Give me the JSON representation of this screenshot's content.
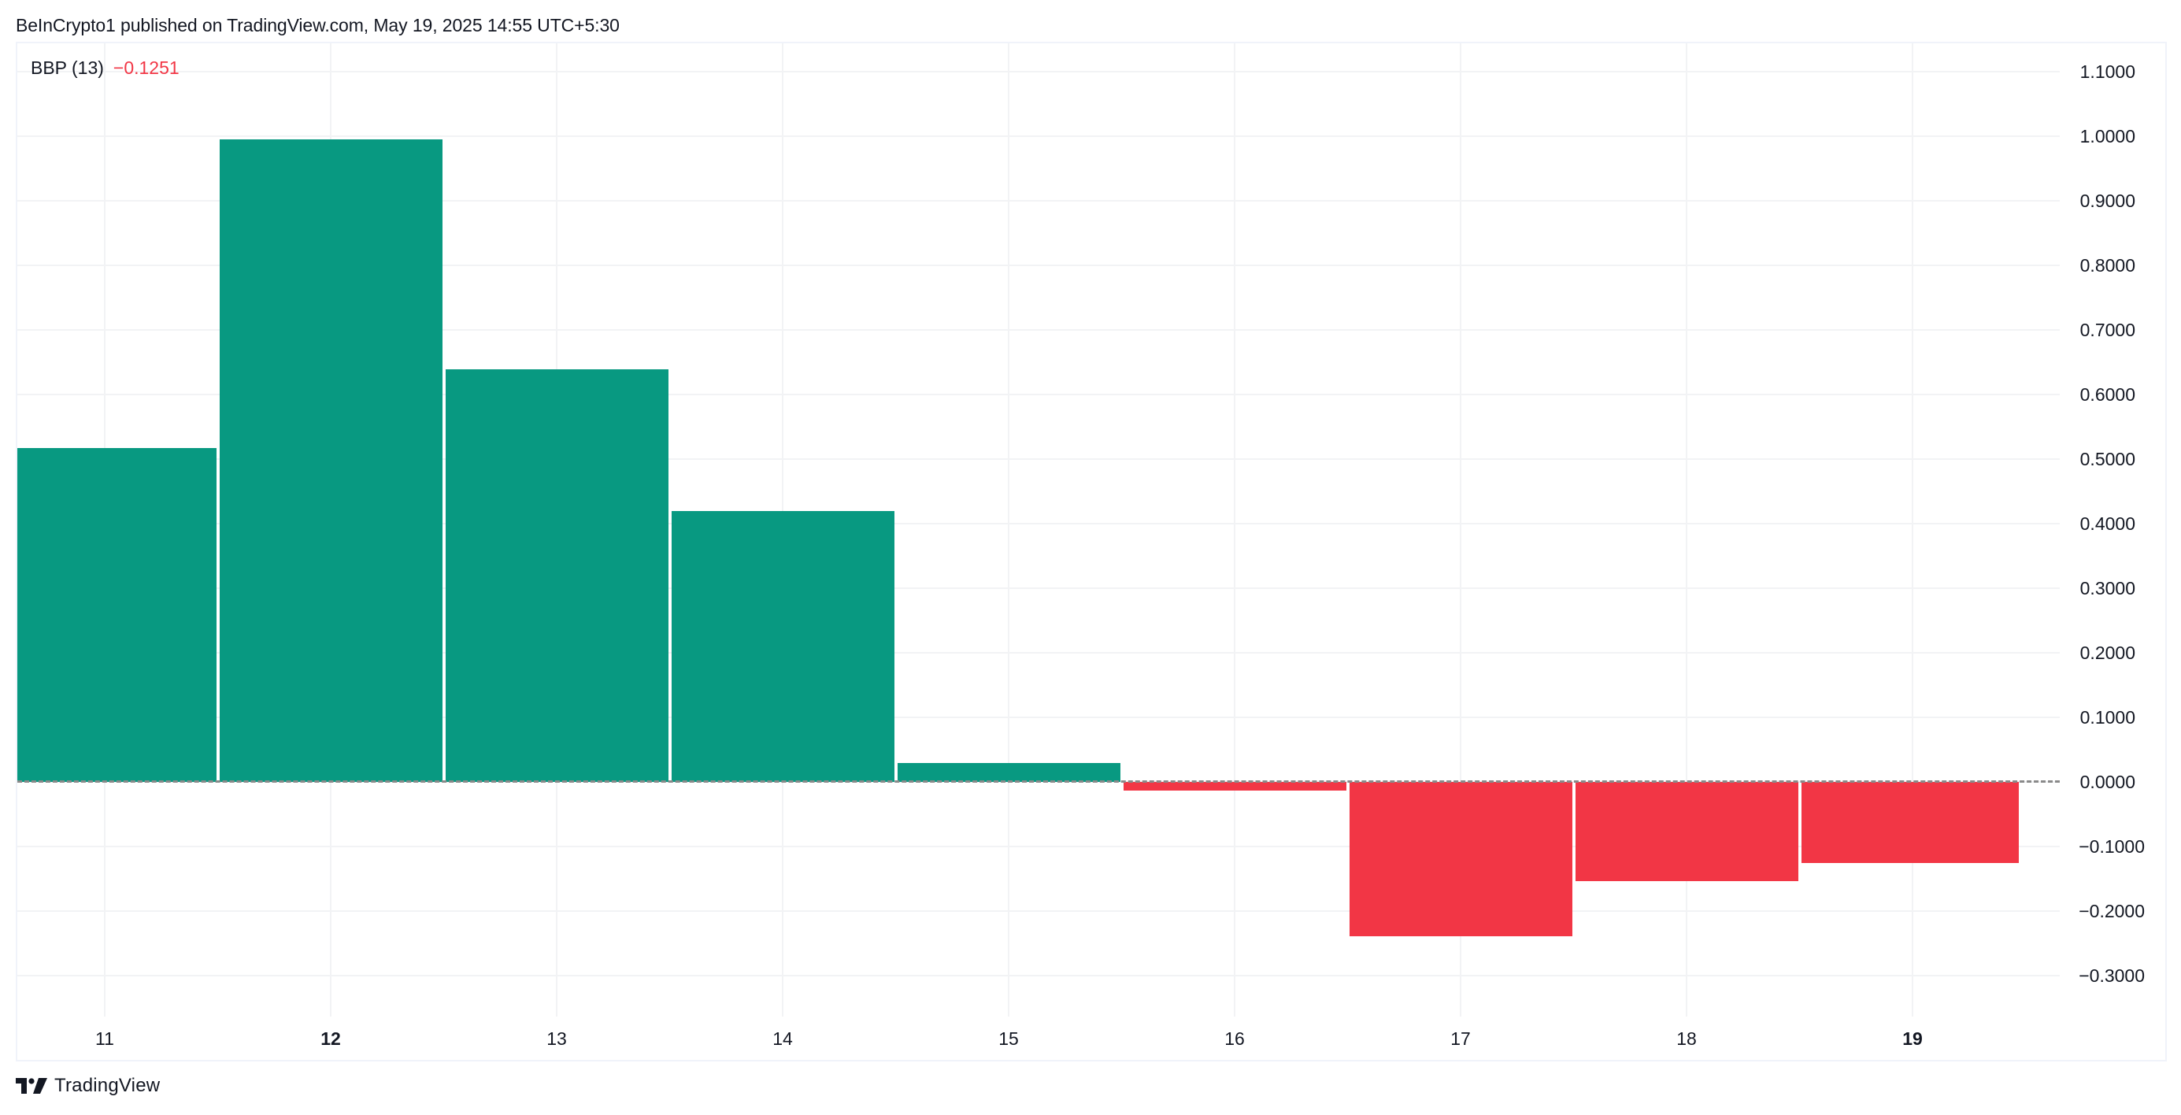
{
  "header": {
    "attribution": "BeInCrypto1 published on TradingView.com, May 19, 2025 14:55 UTC+5:30"
  },
  "legend": {
    "indicator": "BBP (13)",
    "value": "−0.1251",
    "value_color": "#f23645"
  },
  "footer": {
    "brand": "TradingView",
    "logo_icon": "tradingview-logo-icon"
  },
  "colors": {
    "positive": "#089981",
    "negative": "#f23645",
    "grid": "#f2f3f5",
    "text": "#131722",
    "zero_line": "#8a8a8a"
  },
  "y_axis": {
    "labels": [
      "1.1000",
      "1.0000",
      "0.9000",
      "0.8000",
      "0.7000",
      "0.6000",
      "0.5000",
      "0.4000",
      "0.3000",
      "0.2000",
      "0.1000",
      "0.0000",
      "−0.1000",
      "−0.2000",
      "−0.3000"
    ]
  },
  "x_axis": {
    "labels": [
      {
        "text": "11",
        "bold": false
      },
      {
        "text": "12",
        "bold": true
      },
      {
        "text": "13",
        "bold": false
      },
      {
        "text": "14",
        "bold": false
      },
      {
        "text": "15",
        "bold": false
      },
      {
        "text": "16",
        "bold": false
      },
      {
        "text": "17",
        "bold": false
      },
      {
        "text": "18",
        "bold": false
      },
      {
        "text": "19",
        "bold": true
      }
    ]
  },
  "chart_data": {
    "type": "bar",
    "title": "BBP (13)",
    "subtitle": "BeInCrypto1 published on TradingView.com, May 19, 2025 14:55 UTC+5:30",
    "categories": [
      "11",
      "12",
      "13",
      "14",
      "15",
      "16",
      "17",
      "18",
      "19"
    ],
    "series": [
      {
        "name": "BBP (13)",
        "values": [
          0.517,
          0.995,
          0.639,
          0.42,
          0.029,
          -0.013,
          -0.239,
          -0.154,
          -0.1251
        ],
        "colors": [
          "#089981",
          "#089981",
          "#089981",
          "#089981",
          "#089981",
          "#f23645",
          "#f23645",
          "#f23645",
          "#f23645"
        ]
      }
    ],
    "last_value": -0.1251,
    "xlabel": "",
    "ylabel": "",
    "ylim": [
      -0.37,
      1.14
    ],
    "yticks": [
      1.1,
      1.0,
      0.9,
      0.8,
      0.7,
      0.6,
      0.5,
      0.4,
      0.3,
      0.2,
      0.1,
      0.0,
      -0.1,
      -0.2,
      -0.3
    ],
    "grid": true,
    "zero_line": "dashed",
    "legend_position": "top-left",
    "y_axis_position": "right"
  }
}
